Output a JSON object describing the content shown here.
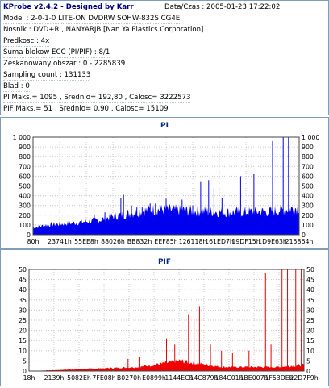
{
  "info": {
    "title": "KProbe v2.4.2 - Designed by Karr",
    "datetime": "Data/Czas : 2005-01-23 17:22:02",
    "lines": [
      "Model : 2-0-1-0 LITE-ON DVDRW SOHW-832S  CG4E",
      "Nosnik : DVD+R , NANYARJB [Nan Ya Plastics Corporation]",
      "Predkosc : 4x",
      "Suma blokow ECC (PI/PIF) : 8/1",
      "Zeskanowany obszar : 0 - 2285839",
      "Sampling count : 131133",
      "Blad : 0",
      "PI Maks.= 1095 , Srednio= 192,80 , Calosc= 3222573",
      "PIF Maks.= 51 , Srednio= 0,90 , Calosc= 15109"
    ]
  },
  "chart_data": [
    {
      "type": "bar",
      "title": "PI",
      "color": "#0000ee",
      "ylim": [
        0,
        1000
      ],
      "yticks": [
        "0",
        "100",
        "200",
        "300",
        "400",
        "500",
        "600",
        "700",
        "800",
        "900",
        "1 000"
      ],
      "xticks": [
        "80h",
        "23741h",
        "55EE8h",
        "88026h",
        "BB832h",
        "EEF85h",
        "126118h",
        "161ED7h",
        "19DF15h",
        "1D9E63h",
        "215864h"
      ],
      "baseline": [
        [
          0,
          70
        ],
        [
          0.05,
          100
        ],
        [
          0.15,
          120
        ],
        [
          0.25,
          150
        ],
        [
          0.3,
          190
        ],
        [
          0.45,
          260
        ],
        [
          0.55,
          250
        ],
        [
          0.75,
          230
        ],
        [
          0.9,
          240
        ],
        [
          1,
          280
        ]
      ],
      "spikes": [
        [
          0.23,
          210
        ],
        [
          0.27,
          230
        ],
        [
          0.33,
          380
        ],
        [
          0.34,
          410
        ],
        [
          0.37,
          300
        ],
        [
          0.39,
          280
        ],
        [
          0.41,
          280
        ],
        [
          0.44,
          320
        ],
        [
          0.46,
          320
        ],
        [
          0.5,
          370
        ],
        [
          0.51,
          290
        ],
        [
          0.56,
          360
        ],
        [
          0.6,
          300
        ],
        [
          0.63,
          540
        ],
        [
          0.66,
          560
        ],
        [
          0.68,
          480
        ],
        [
          0.71,
          380
        ],
        [
          0.78,
          600
        ],
        [
          0.83,
          620
        ],
        [
          0.9,
          960
        ],
        [
          0.94,
          1000
        ],
        [
          0.96,
          1000
        ]
      ]
    },
    {
      "type": "bar",
      "title": "PIF",
      "color": "#ee0000",
      "ylim": [
        0,
        50
      ],
      "yticks": [
        "0",
        "5",
        "10",
        "15",
        "20",
        "25",
        "30",
        "35",
        "40",
        "45",
        "50"
      ],
      "xticks": [
        "18h",
        "2139h",
        "5082Eh",
        "7FE08h",
        "B0270h",
        "E0899h",
        "1144ECh",
        "14C879h",
        "184C01h",
        "1BE007h",
        "1F53DEh",
        "22D7F9h"
      ],
      "baseline": [
        [
          0,
          0
        ],
        [
          0.2,
          1
        ],
        [
          0.4,
          2
        ],
        [
          0.55,
          5
        ],
        [
          0.7,
          2
        ],
        [
          0.9,
          2
        ],
        [
          1,
          3
        ]
      ],
      "spikes": [
        [
          0.36,
          6
        ],
        [
          0.4,
          7
        ],
        [
          0.5,
          16
        ],
        [
          0.53,
          13
        ],
        [
          0.58,
          28
        ],
        [
          0.6,
          26
        ],
        [
          0.62,
          32
        ],
        [
          0.66,
          13
        ],
        [
          0.7,
          10
        ],
        [
          0.74,
          9
        ],
        [
          0.8,
          10
        ],
        [
          0.86,
          48
        ],
        [
          0.88,
          13
        ],
        [
          0.92,
          50
        ],
        [
          0.94,
          50
        ],
        [
          0.97,
          50
        ],
        [
          0.99,
          50
        ]
      ]
    }
  ]
}
